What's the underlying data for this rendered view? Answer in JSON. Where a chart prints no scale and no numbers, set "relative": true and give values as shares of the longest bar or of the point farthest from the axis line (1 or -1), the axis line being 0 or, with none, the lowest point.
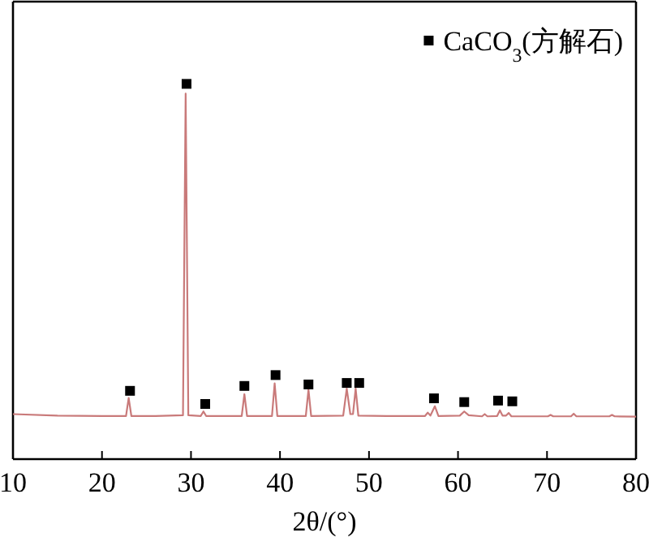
{
  "chart_data": {
    "type": "line",
    "xlabel": "2θ/(°)",
    "relative": true,
    "xlim": [
      10,
      80
    ],
    "xticks": [
      10,
      20,
      30,
      40,
      50,
      60,
      70,
      80
    ],
    "legend": "top right",
    "series": [
      {
        "color": "#c97a7a",
        "x": [
          10,
          15,
          20,
          22.7,
          23.0,
          23.3,
          26,
          29.1,
          29.4,
          29.7,
          31.1,
          31.4,
          31.7,
          35.7,
          36.0,
          36.3,
          39.1,
          39.4,
          39.7,
          42.9,
          43.2,
          43.5,
          47.1,
          47.5,
          47.9,
          48.2,
          48.5,
          48.8,
          52,
          56.3,
          56.6,
          56.9,
          57.4,
          57.8,
          60.2,
          60.7,
          61.2,
          62.7,
          63.0,
          63.3,
          64.4,
          64.7,
          65.0,
          65.4,
          65.7,
          66.0,
          68,
          70.1,
          70.4,
          70.7,
          72.7,
          73.0,
          73.3,
          75,
          77.0,
          77.3,
          77.6,
          80
        ],
        "values": [
          0.12,
          0.116,
          0.115,
          0.115,
          0.163,
          0.115,
          0.115,
          0.117,
          0.974,
          0.117,
          0.115,
          0.127,
          0.115,
          0.115,
          0.173,
          0.115,
          0.115,
          0.202,
          0.115,
          0.115,
          0.185,
          0.115,
          0.116,
          0.188,
          0.12,
          0.12,
          0.188,
          0.116,
          0.115,
          0.115,
          0.124,
          0.116,
          0.141,
          0.115,
          0.116,
          0.127,
          0.117,
          0.114,
          0.12,
          0.114,
          0.115,
          0.13,
          0.116,
          0.116,
          0.123,
          0.114,
          0.114,
          0.114,
          0.118,
          0.114,
          0.114,
          0.121,
          0.114,
          0.114,
          0.114,
          0.118,
          0.114,
          0.113
        ]
      },
      {
        "type": "scatter",
        "name": "CaCO$_{3}$(方解石)",
        "color": "#000000",
        "marker": "square",
        "x": [
          23.15,
          29.5,
          31.6,
          36.0,
          39.5,
          43.2,
          47.5,
          48.9,
          57.3,
          60.7,
          64.5,
          66.1
        ],
        "values": [
          0.182,
          1,
          0.147,
          0.195,
          0.224,
          0.199,
          0.203,
          0.203,
          0.162,
          0.152,
          0.156,
          0.154
        ]
      }
    ]
  }
}
